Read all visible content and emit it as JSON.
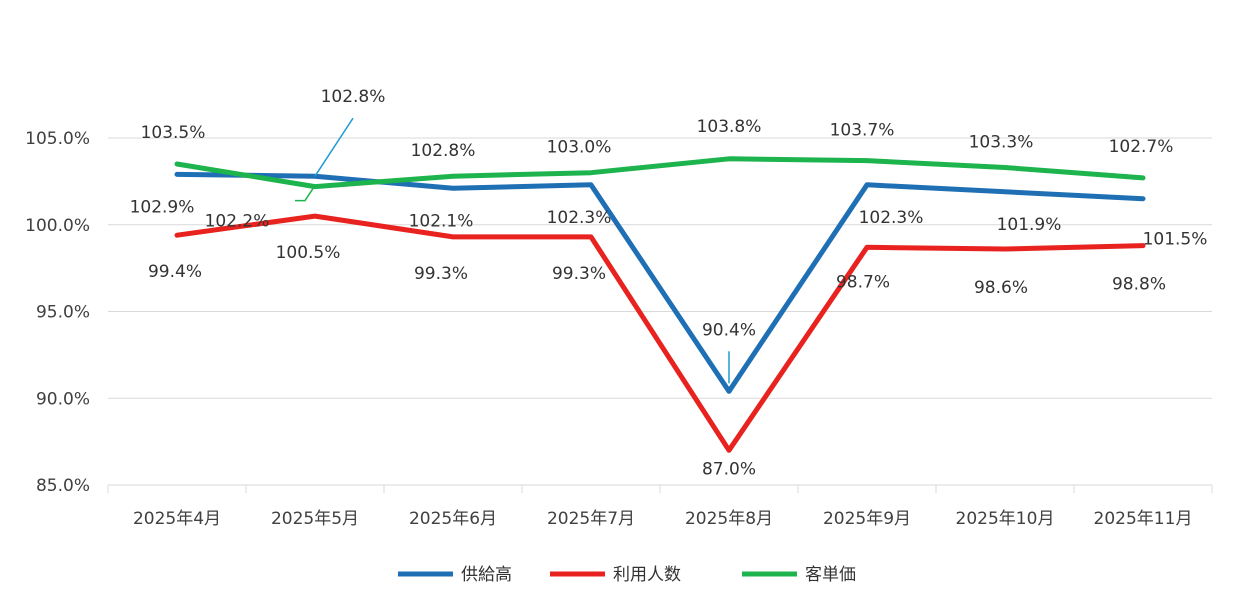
{
  "chart_data": {
    "type": "line",
    "categories": [
      "2025年4月",
      "2025年5月",
      "2025年6月",
      "2025年7月",
      "2025年8月",
      "2025年9月",
      "2025年10月",
      "2025年11月"
    ],
    "ylim": [
      85.0,
      105.0
    ],
    "y_ticks": [
      "85.0%",
      "90.0%",
      "95.0%",
      "100.0%",
      "105.0%"
    ],
    "grid": "horizontal",
    "legend_position": "bottom",
    "series": [
      {
        "name": "供給高",
        "color": "#1f6fb4",
        "values": [
          102.9,
          102.8,
          102.1,
          102.3,
          90.4,
          102.3,
          101.9,
          101.5
        ],
        "labels": [
          "102.9%",
          "102.8%",
          "102.1%",
          "102.3%",
          "90.4%",
          "102.3%",
          "101.9%",
          "101.5%"
        ]
      },
      {
        "name": "利用人数",
        "color": "#e8221e",
        "values": [
          99.4,
          100.5,
          99.3,
          99.3,
          87.0,
          98.7,
          98.6,
          98.8
        ],
        "labels": [
          "99.4%",
          "100.5%",
          "99.3%",
          "99.3%",
          "87.0%",
          "98.7%",
          "98.6%",
          "98.8%"
        ]
      },
      {
        "name": "客単価",
        "color": "#1db34d",
        "values": [
          103.5,
          102.2,
          102.8,
          103.0,
          103.8,
          103.7,
          103.3,
          102.7
        ],
        "labels": [
          "103.5%",
          "102.2%",
          "102.8%",
          "103.0%",
          "103.8%",
          "103.7%",
          "103.3%",
          "102.7%"
        ]
      }
    ]
  }
}
